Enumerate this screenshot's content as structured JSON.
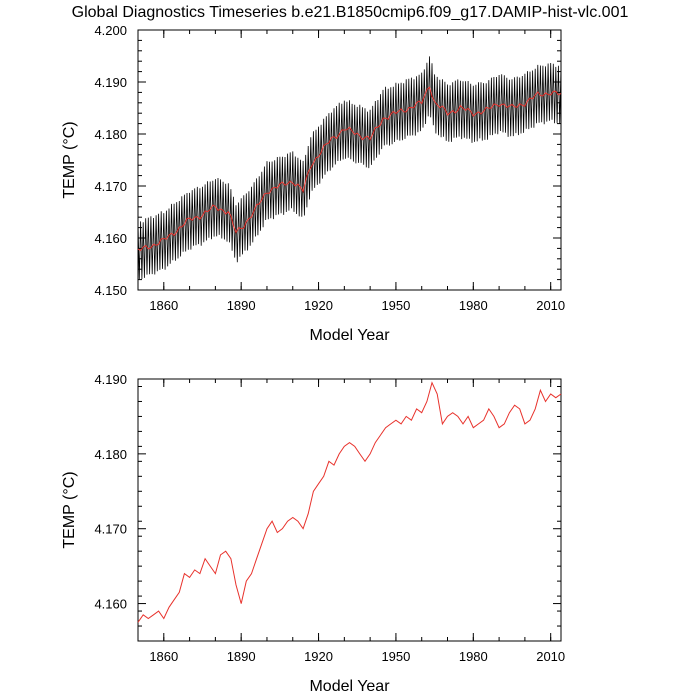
{
  "title": "Global Diagnostics Timeseries b.e21.B1850cmip6.f09_g17.DAMIP-hist-vlc.001",
  "colors": {
    "monthly": "#000000",
    "annual": "#e8322c",
    "frame": "#000000"
  },
  "chart_data": [
    {
      "type": "line",
      "title": "Global Diagnostics Timeseries b.e21.B1850cmip6.f09_g17.DAMIP-hist-vlc.001",
      "xlabel": "Model Year",
      "ylabel": "TEMP (°C)",
      "xlim": [
        1850,
        2014
      ],
      "ylim": [
        4.15,
        4.2
      ],
      "xticks": [
        "1860",
        "1890",
        "1920",
        "1950",
        "1980",
        "2010"
      ],
      "yticks": [
        "4.150",
        "4.160",
        "4.170",
        "4.180",
        "4.190",
        "4.200"
      ],
      "grid": false,
      "annual_x": [
        1850,
        1855,
        1860,
        1865,
        1870,
        1875,
        1880,
        1885,
        1888,
        1891,
        1895,
        1900,
        1905,
        1910,
        1914,
        1917,
        1920,
        1925,
        1930,
        1935,
        1940,
        1945,
        1950,
        1955,
        1960,
        1963,
        1965,
        1970,
        1975,
        1980,
        1985,
        1990,
        1995,
        2000,
        2005,
        2010,
        2014
      ],
      "annual_y": [
        4.1575,
        4.1585,
        4.1595,
        4.1615,
        4.1635,
        4.1645,
        4.166,
        4.165,
        4.161,
        4.1625,
        4.165,
        4.169,
        4.17,
        4.171,
        4.169,
        4.174,
        4.176,
        4.179,
        4.181,
        4.18,
        4.179,
        4.183,
        4.184,
        4.185,
        4.186,
        4.1895,
        4.186,
        4.184,
        4.185,
        4.184,
        4.1845,
        4.186,
        4.185,
        4.186,
        4.1875,
        4.188,
        4.1875
      ],
      "monthly_amplitude": 0.0055
    },
    {
      "type": "line",
      "xlabel": "Model Year",
      "ylabel": "TEMP (°C)",
      "xlim": [
        1850,
        2014
      ],
      "ylim": [
        4.155,
        4.19
      ],
      "xticks": [
        "1860",
        "1890",
        "1920",
        "1950",
        "1980",
        "2010"
      ],
      "yticks": [
        "4.160",
        "4.170",
        "4.180",
        "4.190"
      ],
      "grid": false,
      "series": [
        {
          "x": [
            1850,
            1852,
            1854,
            1856,
            1858,
            1860,
            1862,
            1864,
            1866,
            1868,
            1870,
            1872,
            1874,
            1876,
            1878,
            1880,
            1882,
            1884,
            1886,
            1888,
            1890,
            1892,
            1894,
            1896,
            1898,
            1900,
            1902,
            1904,
            1906,
            1908,
            1910,
            1912,
            1914,
            1916,
            1918,
            1920,
            1922,
            1924,
            1926,
            1928,
            1930,
            1932,
            1934,
            1936,
            1938,
            1940,
            1942,
            1944,
            1946,
            1948,
            1950,
            1952,
            1954,
            1956,
            1958,
            1960,
            1962,
            1964,
            1966,
            1968,
            1970,
            1972,
            1974,
            1976,
            1978,
            1980,
            1982,
            1984,
            1986,
            1988,
            1990,
            1992,
            1994,
            1996,
            1998,
            2000,
            2002,
            2004,
            2006,
            2008,
            2010,
            2012,
            2014
          ],
          "values": [
            4.1575,
            4.1585,
            4.158,
            4.1585,
            4.159,
            4.158,
            4.1595,
            4.1605,
            4.1615,
            4.164,
            4.1635,
            4.1645,
            4.164,
            4.166,
            4.165,
            4.164,
            4.1665,
            4.167,
            4.166,
            4.1625,
            4.16,
            4.163,
            4.164,
            4.166,
            4.168,
            4.17,
            4.171,
            4.1695,
            4.17,
            4.171,
            4.1715,
            4.171,
            4.17,
            4.172,
            4.175,
            4.176,
            4.177,
            4.179,
            4.1785,
            4.18,
            4.181,
            4.1815,
            4.181,
            4.18,
            4.179,
            4.18,
            4.1815,
            4.1825,
            4.1835,
            4.184,
            4.1845,
            4.184,
            4.185,
            4.1845,
            4.186,
            4.1855,
            4.187,
            4.1895,
            4.188,
            4.184,
            4.185,
            4.1855,
            4.185,
            4.184,
            4.185,
            4.1835,
            4.184,
            4.1845,
            4.186,
            4.185,
            4.1835,
            4.184,
            4.1855,
            4.1865,
            4.186,
            4.184,
            4.1845,
            4.186,
            4.1885,
            4.187,
            4.188,
            4.1875,
            4.188
          ]
        }
      ]
    }
  ]
}
